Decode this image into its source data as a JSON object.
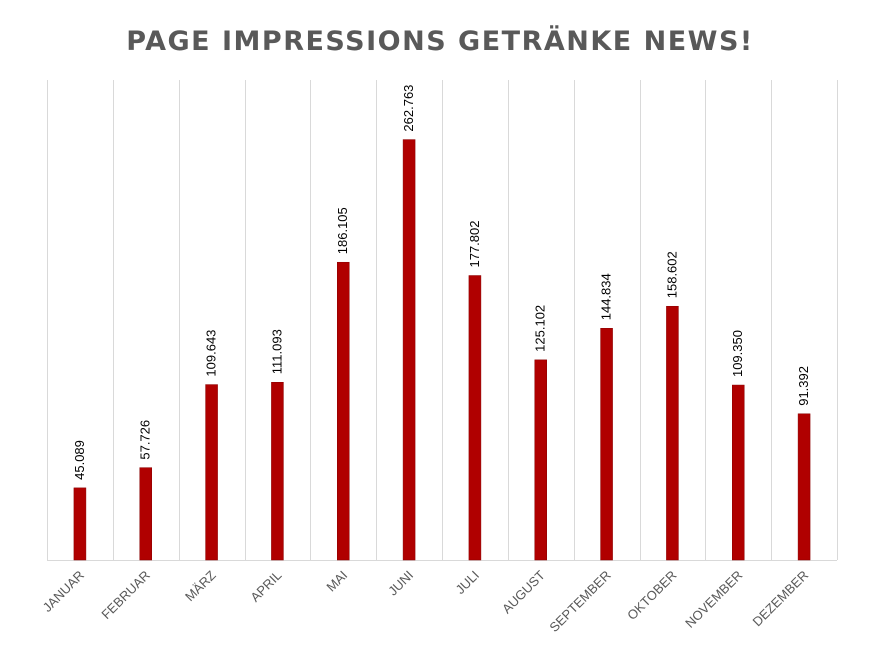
{
  "chart_data": {
    "type": "bar",
    "title": "PAGE IMPRESSIONS GETRÄNKE NEWS!",
    "categories": [
      "JANUAR",
      "FEBRUAR",
      "MÄRZ",
      "APRIL",
      "MAI",
      "JUNI",
      "JULI",
      "AUGUST",
      "SEPTEMBER",
      "OKTOBER",
      "NOVEMBER",
      "DEZEMBER"
    ],
    "values": [
      45089,
      57726,
      109643,
      111093,
      186105,
      262763,
      177802,
      125102,
      144834,
      158602,
      109350,
      91392
    ],
    "data_labels": [
      "45.089",
      "57.726",
      "109.643",
      "111.093",
      "186.105",
      "262.763",
      "177.802",
      "125.102",
      "144.834",
      "158.602",
      "109.350",
      "91.392"
    ],
    "ylim": [
      0,
      300000
    ],
    "grid": "vertical",
    "legend": "none",
    "colors": {
      "bar": "#b00000",
      "grid": "#d9d9d9",
      "title": "#595959",
      "tick": "#595959"
    }
  }
}
